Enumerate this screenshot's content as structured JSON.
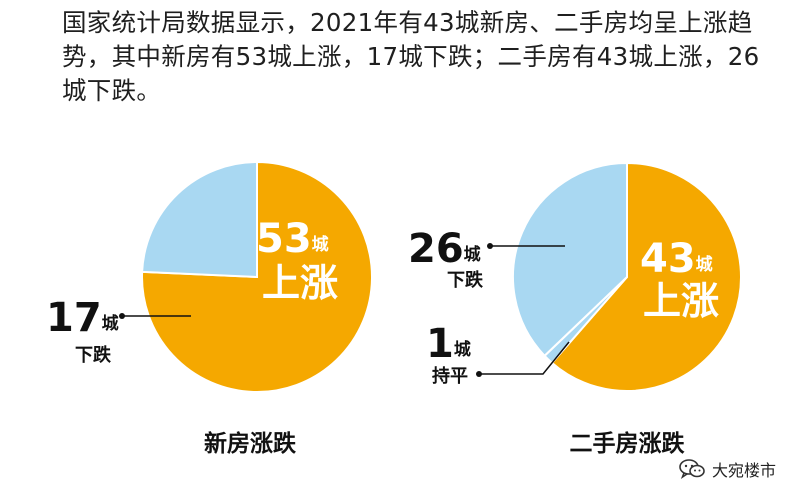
{
  "intro_text": "国家统计局数据显示，2021年有43城新房、二手房均呈上涨趋势，其中新房有53城上涨，17城下跌；二手房有43城上涨，26城下跌。",
  "colors": {
    "up": "#f5a800",
    "down": "#a9d8f2",
    "flat": "#a9d8f2",
    "leader": "#111111",
    "label_on_orange": "#ffffff"
  },
  "chart_data": [
    {
      "type": "pie",
      "title": "新房涨跌",
      "slices": [
        {
          "label": "上涨",
          "value": 53,
          "unit": "城",
          "color": "#f5a800"
        },
        {
          "label": "下跌",
          "value": 17,
          "unit": "城",
          "color": "#a9d8f2"
        }
      ]
    },
    {
      "type": "pie",
      "title": "二手房涨跌",
      "slices": [
        {
          "label": "上涨",
          "value": 43,
          "unit": "城",
          "color": "#f5a800"
        },
        {
          "label": "持平",
          "value": 1,
          "unit": "城",
          "color": "#a9d8f2"
        },
        {
          "label": "下跌",
          "value": 26,
          "unit": "城",
          "color": "#a9d8f2"
        }
      ]
    }
  ],
  "watermark": {
    "text": "大宛楼市",
    "icon": "wechat-icon"
  }
}
